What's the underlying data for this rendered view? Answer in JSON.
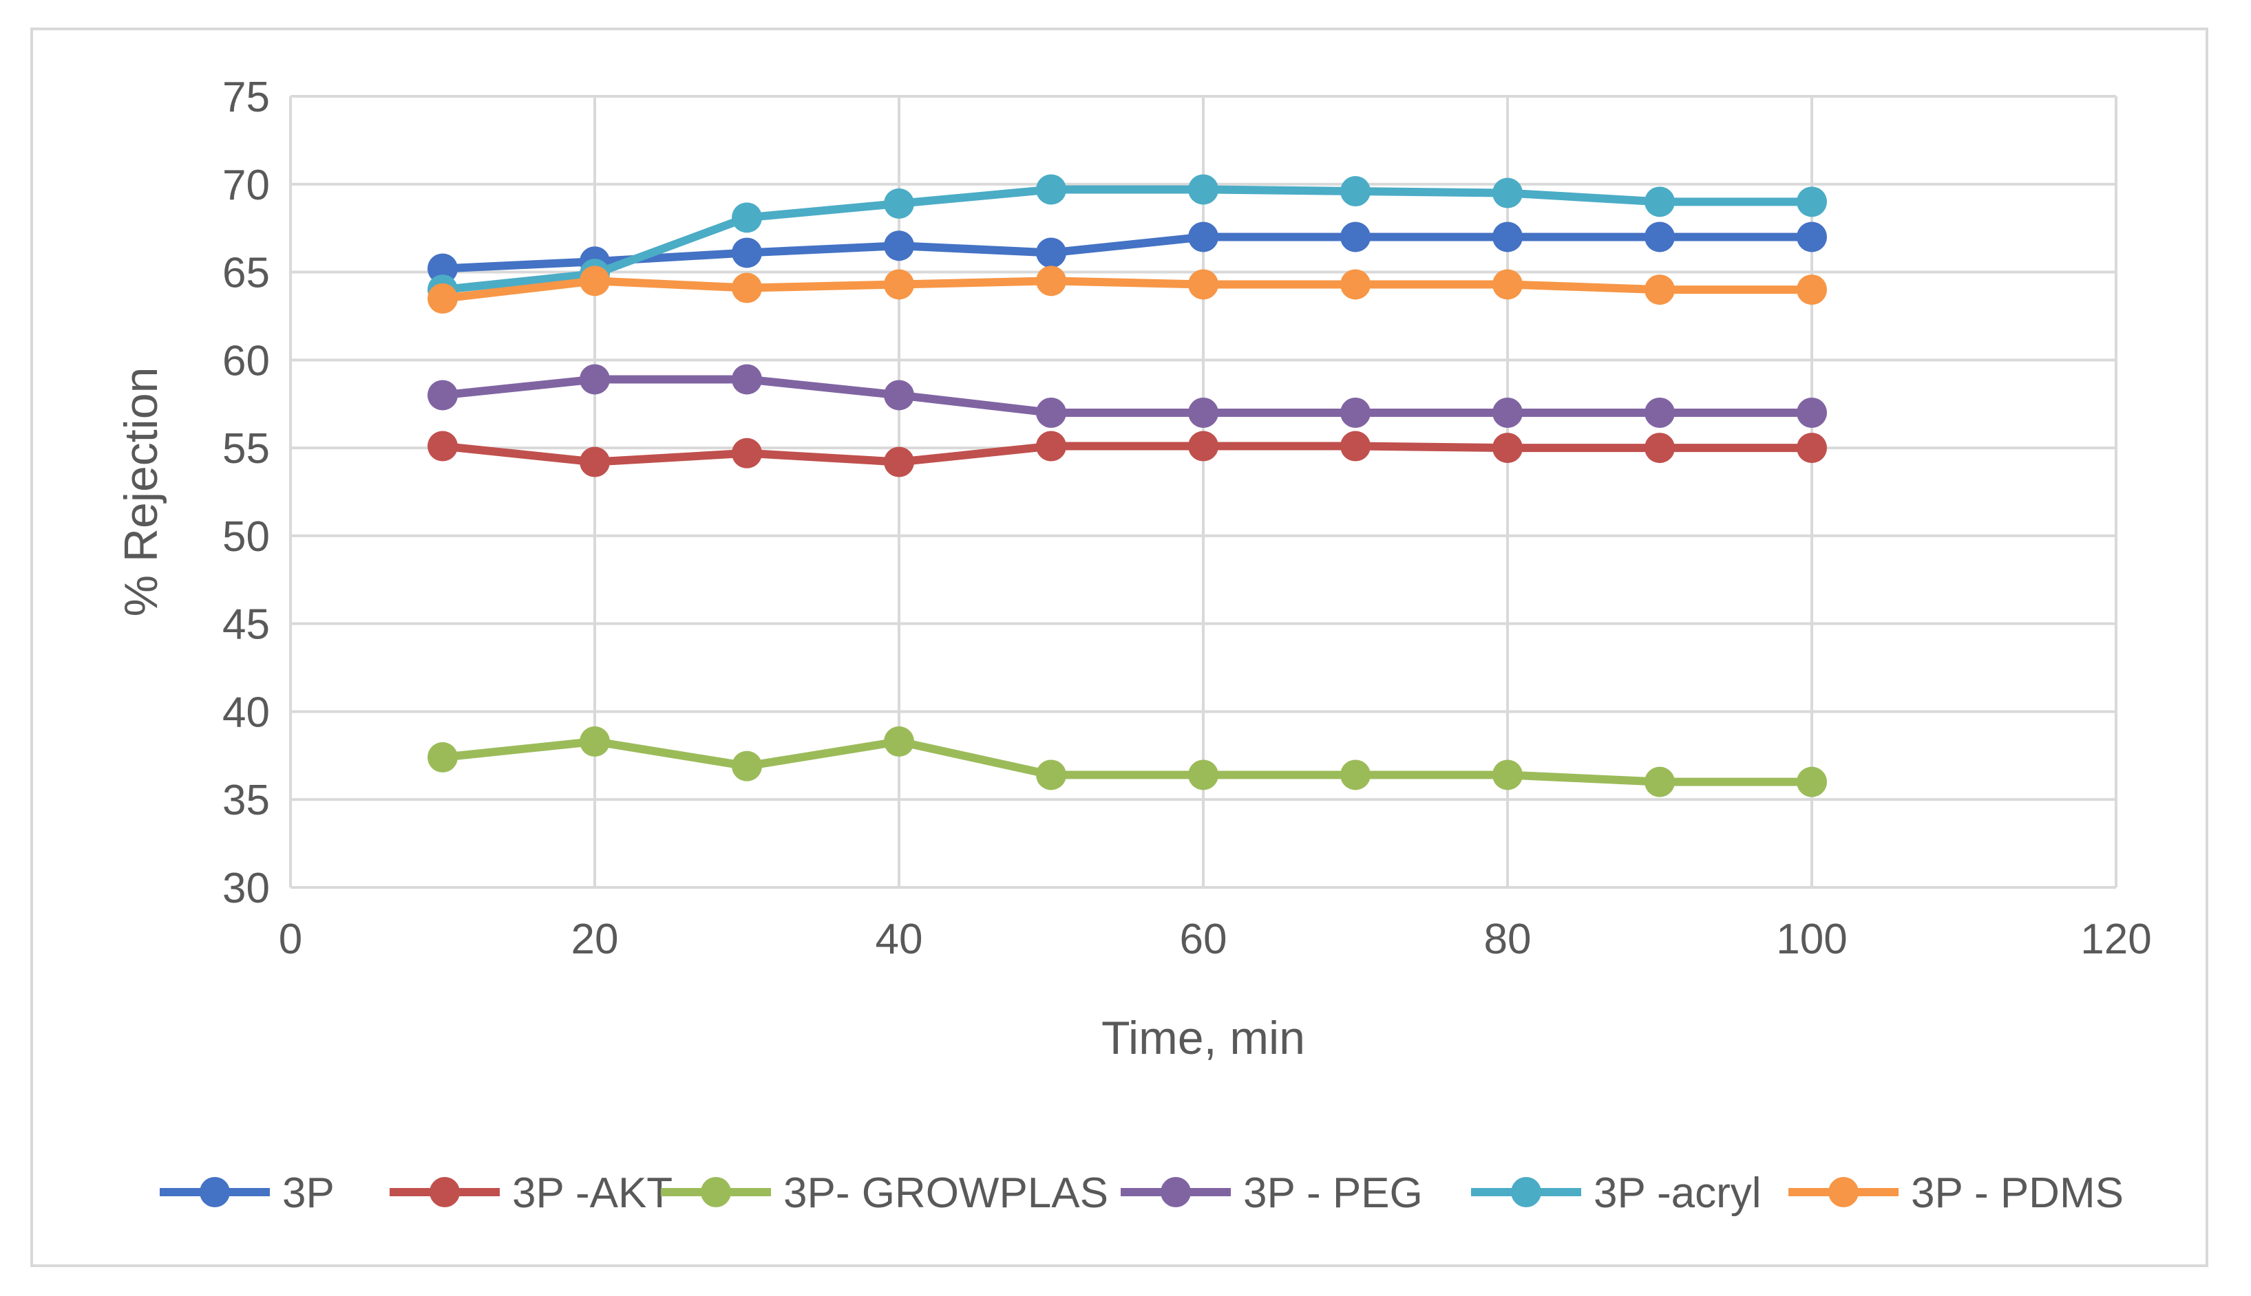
{
  "chart_data": {
    "type": "line",
    "title": "",
    "xlabel": "Time, min",
    "ylabel": "% Rejection",
    "xlim": [
      0,
      120
    ],
    "ylim": [
      30,
      75
    ],
    "xticks": [
      0,
      20,
      40,
      60,
      80,
      100,
      120
    ],
    "yticks": [
      30,
      35,
      40,
      45,
      50,
      55,
      60,
      65,
      70,
      75
    ],
    "grid": true,
    "legend_position": "bottom",
    "x": [
      10,
      20,
      30,
      40,
      50,
      60,
      70,
      80,
      90,
      100
    ],
    "series": [
      {
        "name": "3P",
        "color": "#4472c4",
        "values": [
          65.2,
          65.6,
          66.1,
          66.5,
          66.1,
          67,
          67,
          67,
          67,
          67
        ]
      },
      {
        "name": "3P -AKT",
        "color": "#c0504d",
        "values": [
          55.1,
          54.2,
          54.7,
          54.2,
          55.1,
          55.1,
          55.1,
          55,
          55,
          55
        ]
      },
      {
        "name": "3P- GROWPLAS",
        "color": "#9bbb59",
        "values": [
          37.4,
          38.3,
          36.9,
          38.3,
          36.4,
          36.4,
          36.4,
          36.4,
          36,
          36
        ]
      },
      {
        "name": "3P - PEG",
        "color": "#8064a2",
        "values": [
          58,
          58.9,
          58.9,
          58,
          57,
          57,
          57,
          57,
          57,
          57
        ]
      },
      {
        "name": "3P -acryl",
        "color": "#4bacc6",
        "values": [
          64,
          64.9,
          68.1,
          68.9,
          69.7,
          69.7,
          69.6,
          69.5,
          69,
          69
        ]
      },
      {
        "name": "3P - PDMS",
        "color": "#f79646",
        "values": [
          63.5,
          64.5,
          64.1,
          64.3,
          64.5,
          64.3,
          64.3,
          64.3,
          64,
          64
        ]
      }
    ]
  }
}
